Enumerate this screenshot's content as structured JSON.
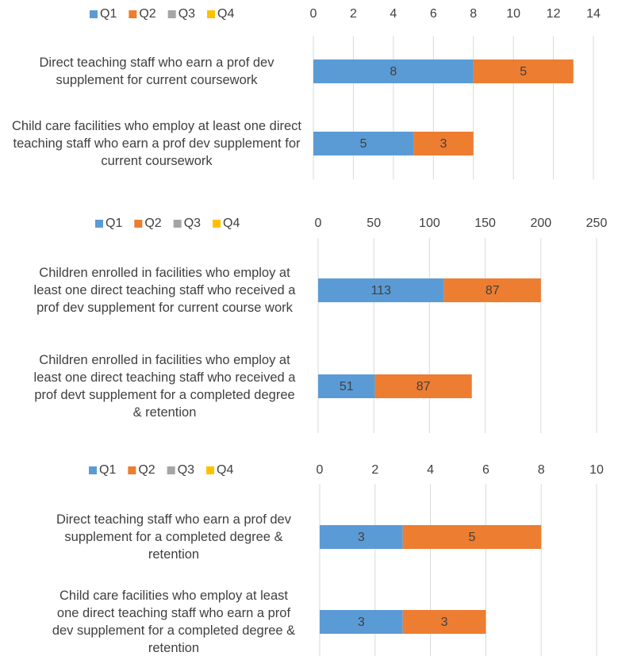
{
  "chart_data": [
    {
      "type": "bar",
      "orientation": "horizontal",
      "stacked": true,
      "grid": true,
      "legend": "top",
      "categories": [
        "Direct teaching staff who earn a prof dev supplement for current coursework",
        "Child care facilities who employ at least one direct teaching staff who earn a prof dev supplement for current coursework"
      ],
      "series": [
        {
          "name": "Q1",
          "color": "#5b9bd5",
          "values": [
            8,
            5
          ]
        },
        {
          "name": "Q2",
          "color": "#ed7d31",
          "values": [
            5,
            3
          ]
        },
        {
          "name": "Q3",
          "color": "#a5a5a5",
          "values": [
            null,
            null
          ]
        },
        {
          "name": "Q4",
          "color": "#ffc000",
          "values": [
            null,
            null
          ]
        }
      ],
      "xlim": [
        0,
        14
      ],
      "xticks": [
        0,
        2,
        4,
        6,
        8,
        10,
        12,
        14
      ]
    },
    {
      "type": "bar",
      "orientation": "horizontal",
      "stacked": true,
      "grid": true,
      "legend": "top",
      "categories": [
        "Children enrolled in facilities who employ at least one direct teaching staff who received a prof dev supplement for current course work",
        "Children enrolled in facilities who employ at least one direct teaching staff who received a prof devt supplement for a completed degree & retention"
      ],
      "series": [
        {
          "name": "Q1",
          "color": "#5b9bd5",
          "values": [
            113,
            51
          ]
        },
        {
          "name": "Q2",
          "color": "#ed7d31",
          "values": [
            87,
            87
          ]
        },
        {
          "name": "Q3",
          "color": "#a5a5a5",
          "values": [
            null,
            null
          ]
        },
        {
          "name": "Q4",
          "color": "#ffc000",
          "values": [
            null,
            null
          ]
        }
      ],
      "xlim": [
        0,
        250
      ],
      "xticks": [
        0,
        50,
        100,
        150,
        200,
        250
      ]
    },
    {
      "type": "bar",
      "orientation": "horizontal",
      "stacked": true,
      "grid": true,
      "legend": "top",
      "categories": [
        "Direct teaching staff who earn a prof dev supplement for a completed degree & retention",
        "Child care facilities who employ at least one direct teaching staff who earn a prof dev supplement for a completed degree & retention"
      ],
      "series": [
        {
          "name": "Q1",
          "color": "#5b9bd5",
          "values": [
            3,
            3
          ]
        },
        {
          "name": "Q2",
          "color": "#ed7d31",
          "values": [
            5,
            3
          ]
        },
        {
          "name": "Q3",
          "color": "#a5a5a5",
          "values": [
            null,
            null
          ]
        },
        {
          "name": "Q4",
          "color": "#ffc000",
          "values": [
            null,
            null
          ]
        }
      ],
      "xlim": [
        0,
        10
      ],
      "xticks": [
        0,
        2,
        4,
        6,
        8,
        10
      ]
    }
  ]
}
